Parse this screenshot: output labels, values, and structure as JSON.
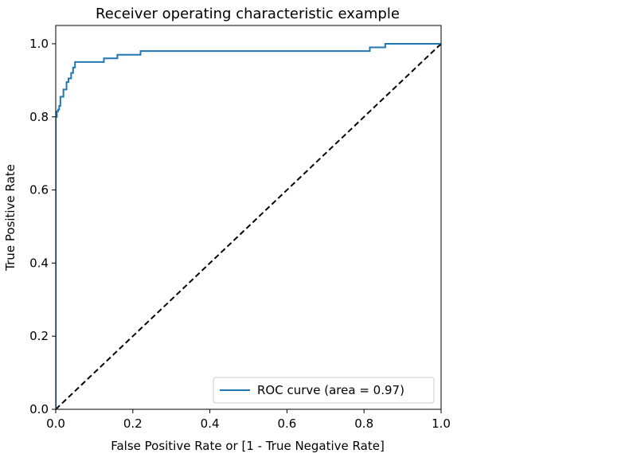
{
  "chart_data": {
    "type": "line",
    "title": "Receiver operating characteristic example",
    "xlabel": "False Positive Rate or [1 - True Negative Rate]",
    "ylabel": "True Positive Rate",
    "xlim": [
      0.0,
      1.0
    ],
    "ylim": [
      0.0,
      1.05
    ],
    "xticks": [
      "0.0",
      "0.2",
      "0.4",
      "0.6",
      "0.8",
      "1.0"
    ],
    "yticks": [
      "0.0",
      "0.2",
      "0.4",
      "0.6",
      "0.8",
      "1.0"
    ],
    "grid": false,
    "legend_position": "lower-right",
    "series": [
      {
        "name": "ROC curve (area = 0.97)",
        "color": "#1f77b4",
        "style": "solid",
        "x": [
          0.0,
          0.0,
          0.003,
          0.003,
          0.006,
          0.006,
          0.009,
          0.009,
          0.012,
          0.012,
          0.02,
          0.02,
          0.028,
          0.028,
          0.033,
          0.033,
          0.04,
          0.04,
          0.045,
          0.045,
          0.05,
          0.05,
          0.125,
          0.125,
          0.16,
          0.16,
          0.22,
          0.22,
          0.815,
          0.815,
          0.855,
          0.855,
          1.0
        ],
        "y": [
          0.0,
          0.8,
          0.8,
          0.815,
          0.815,
          0.82,
          0.82,
          0.83,
          0.83,
          0.855,
          0.855,
          0.875,
          0.875,
          0.895,
          0.895,
          0.905,
          0.905,
          0.92,
          0.92,
          0.935,
          0.935,
          0.95,
          0.95,
          0.96,
          0.96,
          0.97,
          0.97,
          0.98,
          0.98,
          0.99,
          0.99,
          1.0,
          1.0
        ]
      },
      {
        "name": "",
        "color": "#000000",
        "style": "dashed",
        "x": [
          0.0,
          1.0
        ],
        "y": [
          0.0,
          1.0
        ]
      }
    ]
  }
}
